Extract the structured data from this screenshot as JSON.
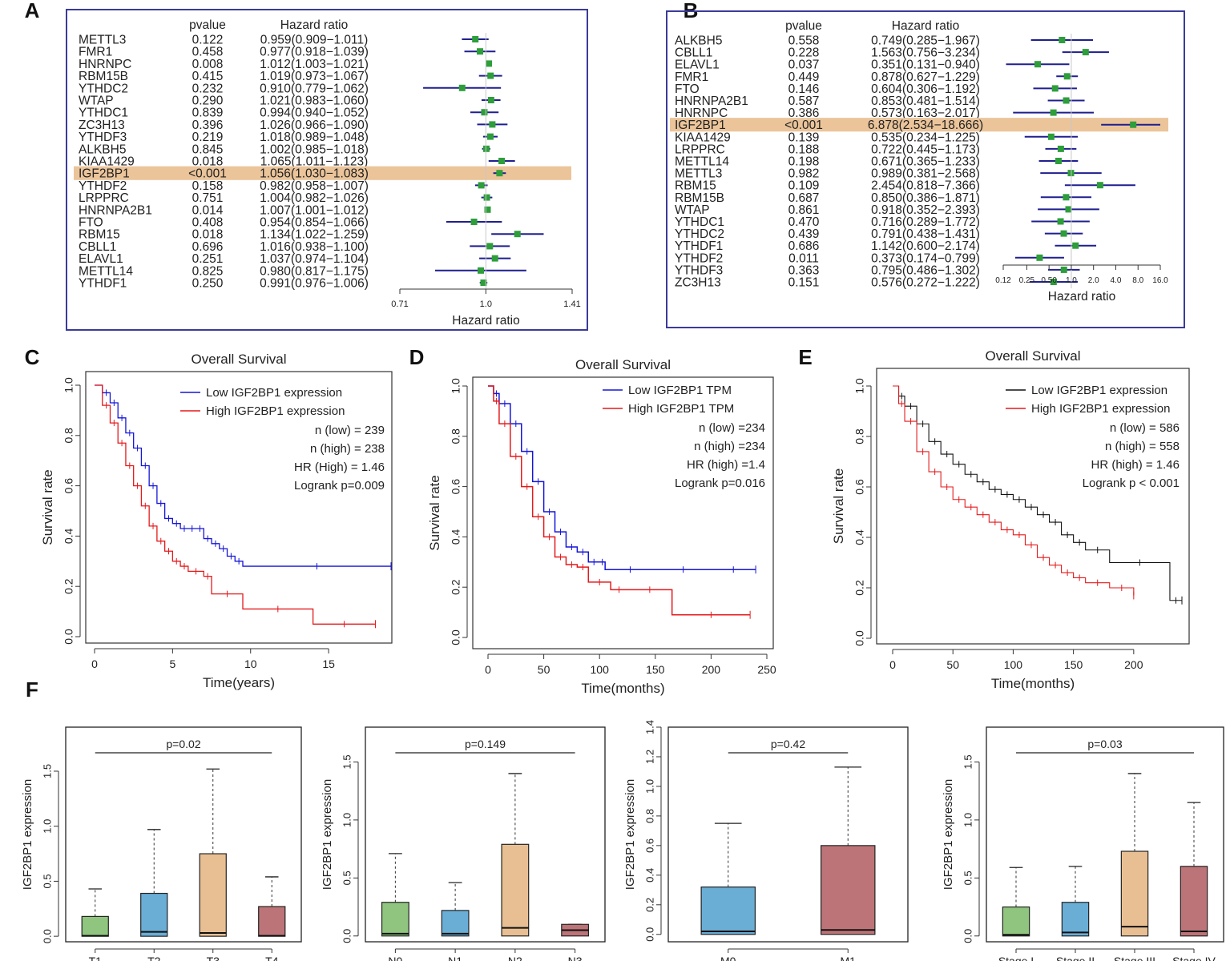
{
  "panel_letters": [
    "A",
    "B",
    "C",
    "D",
    "E",
    "F"
  ],
  "colors": {
    "frame": "#3b3b9a",
    "highlight": "#ebc49a",
    "ci_line": "#1f1f8f",
    "marker": "#2e9e3a",
    "low": "#1515d8",
    "high": "#e31a1c",
    "low_e": "#111111",
    "box_green": "#8fc57e",
    "box_blue": "#6aaed6",
    "box_tan": "#e8bf93",
    "box_red": "#bd7478"
  },
  "chart_data": [
    {
      "id": "A",
      "type": "forest",
      "col_headers": {
        "pvalue": "pvalue",
        "hr": "Hazard ratio"
      },
      "xlabel": "Hazard ratio",
      "xscale": "log",
      "xlim": [
        0.71,
        1.41
      ],
      "ticks": [
        "0.71",
        "1.0",
        "1.41"
      ],
      "ref": 1.0,
      "highlight": "IGF2BP1",
      "rows": [
        {
          "gene": "METTL3",
          "p": "0.122",
          "hrtext": "0.959(0.909−1.011)",
          "hr": 0.959,
          "lo": 0.909,
          "hi": 1.011
        },
        {
          "gene": "FMR1",
          "p": "0.458",
          "hrtext": "0.977(0.918−1.039)",
          "hr": 0.977,
          "lo": 0.918,
          "hi": 1.039
        },
        {
          "gene": "HNRNPC",
          "p": "0.008",
          "hrtext": "1.012(1.003−1.021)",
          "hr": 1.012,
          "lo": 1.003,
          "hi": 1.021
        },
        {
          "gene": "RBM15B",
          "p": "0.415",
          "hrtext": "1.019(0.973−1.067)",
          "hr": 1.019,
          "lo": 0.973,
          "hi": 1.067
        },
        {
          "gene": "YTHDC2",
          "p": "0.232",
          "hrtext": "0.910(0.779−1.062)",
          "hr": 0.91,
          "lo": 0.779,
          "hi": 1.062
        },
        {
          "gene": "WTAP",
          "p": "0.290",
          "hrtext": "1.021(0.983−1.060)",
          "hr": 1.021,
          "lo": 0.983,
          "hi": 1.06
        },
        {
          "gene": "YTHDC1",
          "p": "0.839",
          "hrtext": "0.994(0.940−1.052)",
          "hr": 0.994,
          "lo": 0.94,
          "hi": 1.052
        },
        {
          "gene": "ZC3H13",
          "p": "0.396",
          "hrtext": "1.026(0.966−1.090)",
          "hr": 1.026,
          "lo": 0.966,
          "hi": 1.09
        },
        {
          "gene": "YTHDF3",
          "p": "0.219",
          "hrtext": "1.018(0.989−1.048)",
          "hr": 1.018,
          "lo": 0.989,
          "hi": 1.048
        },
        {
          "gene": "ALKBH5",
          "p": "0.845",
          "hrtext": "1.002(0.985−1.018)",
          "hr": 1.002,
          "lo": 0.985,
          "hi": 1.018
        },
        {
          "gene": "KIAA1429",
          "p": "0.018",
          "hrtext": "1.065(1.011−1.123)",
          "hr": 1.065,
          "lo": 1.011,
          "hi": 1.123
        },
        {
          "gene": "IGF2BP1",
          "p": "<0.001",
          "hrtext": "1.056(1.030−1.083)",
          "hr": 1.056,
          "lo": 1.03,
          "hi": 1.083
        },
        {
          "gene": "YTHDF2",
          "p": "0.158",
          "hrtext": "0.982(0.958−1.007)",
          "hr": 0.982,
          "lo": 0.958,
          "hi": 1.007
        },
        {
          "gene": "LRPPRC",
          "p": "0.751",
          "hrtext": "1.004(0.982−1.026)",
          "hr": 1.004,
          "lo": 0.982,
          "hi": 1.026
        },
        {
          "gene": "HNRNPA2B1",
          "p": "0.014",
          "hrtext": "1.007(1.001−1.012)",
          "hr": 1.007,
          "lo": 1.001,
          "hi": 1.012
        },
        {
          "gene": "FTO",
          "p": "0.408",
          "hrtext": "0.954(0.854−1.066)",
          "hr": 0.954,
          "lo": 0.854,
          "hi": 1.066
        },
        {
          "gene": "RBM15",
          "p": "0.018",
          "hrtext": "1.134(1.022−1.259)",
          "hr": 1.134,
          "lo": 1.022,
          "hi": 1.259
        },
        {
          "gene": "CBLL1",
          "p": "0.696",
          "hrtext": "1.016(0.938−1.100)",
          "hr": 1.016,
          "lo": 0.938,
          "hi": 1.1
        },
        {
          "gene": "ELAVL1",
          "p": "0.251",
          "hrtext": "1.037(0.974−1.104)",
          "hr": 1.037,
          "lo": 0.974,
          "hi": 1.104
        },
        {
          "gene": "METTL14",
          "p": "0.825",
          "hrtext": "0.980(0.817−1.175)",
          "hr": 0.98,
          "lo": 0.817,
          "hi": 1.175
        },
        {
          "gene": "YTHDF1",
          "p": "0.250",
          "hrtext": "0.991(0.976−1.006)",
          "hr": 0.991,
          "lo": 0.976,
          "hi": 1.006
        }
      ]
    },
    {
      "id": "B",
      "type": "forest",
      "col_headers": {
        "pvalue": "pvalue",
        "hr": "Hazard ratio"
      },
      "xlabel": "Hazard ratio",
      "xscale": "log",
      "xlim": [
        0.12,
        16.0
      ],
      "ticks": [
        "0.12",
        "0.25",
        "0.50",
        "1.0",
        "2.0",
        "4.0",
        "8.0",
        "16.0"
      ],
      "ref": 1.0,
      "highlight": "IGF2BP1",
      "rows": [
        {
          "gene": "ALKBH5",
          "p": "0.558",
          "hrtext": "0.749(0.285−1.967)",
          "hr": 0.749,
          "lo": 0.285,
          "hi": 1.967
        },
        {
          "gene": "CBLL1",
          "p": "0.228",
          "hrtext": "1.563(0.756−3.234)",
          "hr": 1.563,
          "lo": 0.756,
          "hi": 3.234
        },
        {
          "gene": "ELAVL1",
          "p": "0.037",
          "hrtext": "0.351(0.131−0.940)",
          "hr": 0.351,
          "lo": 0.131,
          "hi": 0.94
        },
        {
          "gene": "FMR1",
          "p": "0.449",
          "hrtext": "0.878(0.627−1.229)",
          "hr": 0.878,
          "lo": 0.627,
          "hi": 1.229
        },
        {
          "gene": "FTO",
          "p": "0.146",
          "hrtext": "0.604(0.306−1.192)",
          "hr": 0.604,
          "lo": 0.306,
          "hi": 1.192
        },
        {
          "gene": "HNRNPA2B1",
          "p": "0.587",
          "hrtext": "0.853(0.481−1.514)",
          "hr": 0.853,
          "lo": 0.481,
          "hi": 1.514
        },
        {
          "gene": "HNRNPC",
          "p": "0.386",
          "hrtext": "0.573(0.163−2.017)",
          "hr": 0.573,
          "lo": 0.163,
          "hi": 2.017
        },
        {
          "gene": "IGF2BP1",
          "p": "<0.001",
          "hrtext": "6.878(2.534−18.666)",
          "hr": 6.878,
          "lo": 2.534,
          "hi": 18.666
        },
        {
          "gene": "KIAA1429",
          "p": "0.139",
          "hrtext": "0.535(0.234−1.225)",
          "hr": 0.535,
          "lo": 0.234,
          "hi": 1.225
        },
        {
          "gene": "LRPPRC",
          "p": "0.188",
          "hrtext": "0.722(0.445−1.173)",
          "hr": 0.722,
          "lo": 0.445,
          "hi": 1.173
        },
        {
          "gene": "METTL14",
          "p": "0.198",
          "hrtext": "0.671(0.365−1.233)",
          "hr": 0.671,
          "lo": 0.365,
          "hi": 1.233
        },
        {
          "gene": "METTL3",
          "p": "0.982",
          "hrtext": "0.989(0.381−2.568)",
          "hr": 0.989,
          "lo": 0.381,
          "hi": 2.568
        },
        {
          "gene": "RBM15",
          "p": "0.109",
          "hrtext": "2.454(0.818−7.366)",
          "hr": 2.454,
          "lo": 0.818,
          "hi": 7.366
        },
        {
          "gene": "RBM15B",
          "p": "0.687",
          "hrtext": "0.850(0.386−1.871)",
          "hr": 0.85,
          "lo": 0.386,
          "hi": 1.871
        },
        {
          "gene": "WTAP",
          "p": "0.861",
          "hrtext": "0.918(0.352−2.393)",
          "hr": 0.918,
          "lo": 0.352,
          "hi": 2.393
        },
        {
          "gene": "YTHDC1",
          "p": "0.470",
          "hrtext": "0.716(0.289−1.772)",
          "hr": 0.716,
          "lo": 0.289,
          "hi": 1.772
        },
        {
          "gene": "YTHDC2",
          "p": "0.439",
          "hrtext": "0.791(0.438−1.431)",
          "hr": 0.791,
          "lo": 0.438,
          "hi": 1.431
        },
        {
          "gene": "YTHDF1",
          "p": "0.686",
          "hrtext": "1.142(0.600−2.174)",
          "hr": 1.142,
          "lo": 0.6,
          "hi": 2.174
        },
        {
          "gene": "YTHDF2",
          "p": "0.011",
          "hrtext": "0.373(0.174−0.799)",
          "hr": 0.373,
          "lo": 0.174,
          "hi": 0.799
        },
        {
          "gene": "YTHDF3",
          "p": "0.363",
          "hrtext": "0.795(0.486−1.302)",
          "hr": 0.795,
          "lo": 0.486,
          "hi": 1.302
        },
        {
          "gene": "ZC3H13",
          "p": "0.151",
          "hrtext": "0.576(0.272−1.222)",
          "hr": 0.576,
          "lo": 0.272,
          "hi": 1.222
        }
      ]
    },
    {
      "id": "C",
      "type": "line",
      "subtype": "kaplan-meier",
      "title": "Overall Survival",
      "xlabel": "Time(years)",
      "ylabel": "Survival rate",
      "xlim": [
        0,
        19
      ],
      "ylim": [
        0,
        1
      ],
      "xticks": [
        0,
        5,
        10,
        15
      ],
      "yticks": [
        "0.0",
        "0.2",
        "0.4",
        "0.6",
        "0.8",
        "1.0"
      ],
      "legend": [
        "Low IGF2BP1 expression",
        "High IGF2BP1 expression"
      ],
      "stats": [
        "n (low) = 239",
        "n (high) = 238",
        "HR (High) = 1.46",
        "Logrank p=0.009"
      ],
      "series": [
        {
          "name": "Low IGF2BP1 expression",
          "color_key": "low",
          "x": [
            0,
            0.5,
            1,
            1.5,
            2,
            2.5,
            3,
            3.5,
            4,
            4.5,
            5,
            5.5,
            6,
            6.5,
            7,
            7.5,
            8,
            8.5,
            9,
            9.5,
            19
          ],
          "y": [
            1,
            0.97,
            0.93,
            0.87,
            0.81,
            0.75,
            0.68,
            0.6,
            0.53,
            0.47,
            0.45,
            0.43,
            0.43,
            0.43,
            0.39,
            0.37,
            0.35,
            0.32,
            0.3,
            0.28,
            0.28
          ]
        },
        {
          "name": "High IGF2BP1 expression",
          "color_key": "high",
          "x": [
            0,
            0.5,
            1,
            1.5,
            2,
            2.5,
            3,
            3.5,
            4,
            4.5,
            5,
            5.5,
            6,
            7,
            7.5,
            9.5,
            14,
            18
          ],
          "y": [
            1,
            0.92,
            0.85,
            0.77,
            0.68,
            0.6,
            0.52,
            0.44,
            0.38,
            0.34,
            0.3,
            0.28,
            0.26,
            0.24,
            0.17,
            0.11,
            0.05,
            0.05
          ]
        }
      ]
    },
    {
      "id": "D",
      "type": "line",
      "subtype": "kaplan-meier",
      "title": "Overall Survival",
      "xlabel": "Time(months)",
      "ylabel": "Survival rate",
      "xlim": [
        0,
        250
      ],
      "ylim": [
        0,
        1
      ],
      "xticks": [
        0,
        50,
        100,
        150,
        200,
        250
      ],
      "yticks": [
        "0.0",
        "0.2",
        "0.4",
        "0.6",
        "0.8",
        "1.0"
      ],
      "legend": [
        "Low IGF2BP1 TPM",
        "High IGF2BP1 TPM"
      ],
      "stats": [
        "n (low) =234",
        "n (high) =234",
        "HR (high) =1.4",
        "Logrank p=0.016"
      ],
      "series": [
        {
          "name": "Low IGF2BP1 TPM",
          "color_key": "low",
          "x": [
            0,
            5,
            10,
            20,
            30,
            40,
            50,
            60,
            70,
            80,
            90,
            100,
            105,
            150,
            200,
            240
          ],
          "y": [
            1,
            0.97,
            0.93,
            0.85,
            0.74,
            0.62,
            0.5,
            0.42,
            0.36,
            0.34,
            0.3,
            0.3,
            0.27,
            0.27,
            0.27,
            0.27
          ]
        },
        {
          "name": "High IGF2BP1 TPM",
          "color_key": "high",
          "x": [
            0,
            5,
            10,
            20,
            30,
            40,
            50,
            60,
            70,
            80,
            90,
            110,
            125,
            165,
            235
          ],
          "y": [
            1,
            0.94,
            0.85,
            0.72,
            0.6,
            0.48,
            0.4,
            0.32,
            0.29,
            0.28,
            0.22,
            0.19,
            0.19,
            0.09,
            0.09
          ]
        }
      ]
    },
    {
      "id": "E",
      "type": "line",
      "subtype": "kaplan-meier",
      "title": "Overall Survival",
      "xlabel": "Time(months)",
      "ylabel": "Survival rate",
      "xlim": [
        0,
        240
      ],
      "ylim": [
        0,
        1
      ],
      "xticks": [
        0,
        50,
        100,
        150,
        200
      ],
      "yticks": [
        "0.0",
        "0.2",
        "0.4",
        "0.6",
        "0.8",
        "1.0"
      ],
      "legend": [
        "Low IGF2BP1 expression",
        "High IGF2BP1 expression"
      ],
      "stats": [
        "n (low) = 586",
        "n (high) = 558",
        "HR (high) = 1.46",
        "Logrank p < 0.001"
      ],
      "series": [
        {
          "name": "Low IGF2BP1 expression",
          "color_key": "low_e",
          "x": [
            0,
            5,
            10,
            20,
            30,
            40,
            50,
            60,
            70,
            80,
            90,
            100,
            110,
            120,
            130,
            140,
            150,
            160,
            180,
            230,
            240
          ],
          "y": [
            1,
            0.96,
            0.92,
            0.85,
            0.78,
            0.73,
            0.69,
            0.65,
            0.62,
            0.59,
            0.57,
            0.55,
            0.52,
            0.49,
            0.46,
            0.41,
            0.38,
            0.35,
            0.3,
            0.15,
            0.15
          ]
        },
        {
          "name": "High IGF2BP1 expression",
          "color_key": "high",
          "x": [
            0,
            5,
            10,
            20,
            30,
            40,
            50,
            60,
            70,
            80,
            90,
            100,
            110,
            120,
            130,
            140,
            150,
            160,
            180,
            200
          ],
          "y": [
            1,
            0.93,
            0.86,
            0.74,
            0.66,
            0.6,
            0.55,
            0.52,
            0.49,
            0.46,
            0.43,
            0.41,
            0.37,
            0.32,
            0.29,
            0.26,
            0.24,
            0.22,
            0.2,
            0.17
          ]
        }
      ]
    },
    {
      "id": "F1",
      "type": "box",
      "ylabel": "IGF2BP1 expression",
      "ylim": [
        -0.05,
        1.9
      ],
      "yticks": [
        "0.0",
        "0.5",
        "1.0",
        "1.5"
      ],
      "pvalue": "p=0.02",
      "bracket": [
        0,
        3
      ],
      "categories": [
        "T1",
        "T2",
        "T3",
        "T4"
      ],
      "colors": [
        "box_green",
        "box_blue",
        "box_tan",
        "box_red"
      ],
      "boxes": [
        {
          "min": 0,
          "q1": 0,
          "median": 0.005,
          "q3": 0.18,
          "max": 0.43
        },
        {
          "min": 0,
          "q1": 0,
          "median": 0.04,
          "q3": 0.39,
          "max": 0.97
        },
        {
          "min": 0,
          "q1": 0,
          "median": 0.03,
          "q3": 0.75,
          "max": 1.52
        },
        {
          "min": 0,
          "q1": 0,
          "median": 0.005,
          "q3": 0.27,
          "max": 0.54
        }
      ]
    },
    {
      "id": "F2",
      "type": "box",
      "ylabel": "IGF2BP1 expression",
      "ylim": [
        -0.05,
        1.8
      ],
      "yticks": [
        "0.0",
        "0.5",
        "1.0",
        "1.5"
      ],
      "pvalue": "p=0.149",
      "bracket": [
        0,
        3
      ],
      "categories": [
        "N0",
        "N1",
        "N2",
        "N3"
      ],
      "colors": [
        "box_green",
        "box_blue",
        "box_tan",
        "box_red"
      ],
      "boxes": [
        {
          "min": 0,
          "q1": 0,
          "median": 0.02,
          "q3": 0.29,
          "max": 0.71
        },
        {
          "min": 0,
          "q1": 0,
          "median": 0.02,
          "q3": 0.22,
          "max": 0.46
        },
        {
          "min": 0,
          "q1": 0,
          "median": 0.07,
          "q3": 0.79,
          "max": 1.4
        },
        {
          "min": 0,
          "q1": 0,
          "median": 0.05,
          "q3": 0.1,
          "max": 0.1
        }
      ]
    },
    {
      "id": "F3",
      "type": "box",
      "ylabel": "IGF2BP1 expression",
      "ylim": [
        -0.05,
        1.4
      ],
      "yticks": [
        "0.0",
        "0.2",
        "0.4",
        "0.6",
        "0.8",
        "1.0",
        "1.2",
        "1.4"
      ],
      "pvalue": "p=0.42",
      "bracket": [
        0,
        1
      ],
      "categories": [
        "M0",
        "M1"
      ],
      "colors": [
        "box_blue",
        "box_red"
      ],
      "boxes": [
        {
          "min": 0,
          "q1": 0,
          "median": 0.02,
          "q3": 0.32,
          "max": 0.75
        },
        {
          "min": 0,
          "q1": 0,
          "median": 0.03,
          "q3": 0.6,
          "max": 1.13
        }
      ]
    },
    {
      "id": "F4",
      "type": "box",
      "ylabel": "IGF2BP1 expression",
      "ylim": [
        -0.05,
        1.8
      ],
      "yticks": [
        "0.0",
        "0.5",
        "1.0",
        "1.5"
      ],
      "pvalue": "p=0.03",
      "bracket": [
        0,
        3
      ],
      "categories": [
        "Stage I",
        "Stage II",
        "Stage III",
        "Stage IV"
      ],
      "colors": [
        "box_green",
        "box_blue",
        "box_tan",
        "box_red"
      ],
      "boxes": [
        {
          "min": 0,
          "q1": 0,
          "median": 0.01,
          "q3": 0.25,
          "max": 0.59
        },
        {
          "min": 0,
          "q1": 0,
          "median": 0.03,
          "q3": 0.29,
          "max": 0.6
        },
        {
          "min": 0,
          "q1": 0,
          "median": 0.08,
          "q3": 0.73,
          "max": 1.4
        },
        {
          "min": 0,
          "q1": 0,
          "median": 0.04,
          "q3": 0.6,
          "max": 1.15
        }
      ]
    }
  ]
}
